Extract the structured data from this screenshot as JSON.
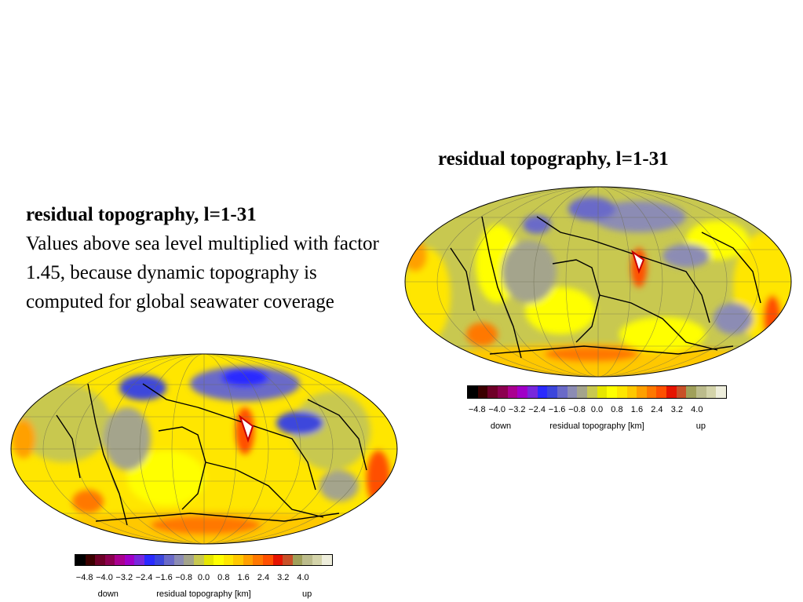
{
  "slide": {
    "right_title": "residual topography, l=1-31",
    "left_title": "residual topography, l=1-31",
    "left_body": "Values above sea level multiplied with factor 1.45, because dynamic topography is computed for global seawater coverage"
  },
  "colorbar": {
    "colors": [
      "#000000",
      "#3b0000",
      "#6e0028",
      "#8c0050",
      "#aa0090",
      "#a000c8",
      "#7828dc",
      "#2a2aff",
      "#3c46dc",
      "#6a6ac8",
      "#8c8cb4",
      "#a4a48c",
      "#c8c850",
      "#e6e600",
      "#ffff00",
      "#ffe600",
      "#ffc800",
      "#ffa000",
      "#ff7800",
      "#ff5000",
      "#e61400",
      "#c85028",
      "#a0a05a",
      "#bcbc8c",
      "#d4d4aa",
      "#eeeedc"
    ],
    "ticks": [
      "−4.8",
      "−4.0",
      "−3.2",
      "−2.4",
      "−1.6",
      "−0.8",
      "0.0",
      "0.8",
      "1.6",
      "2.4",
      "3.2",
      "4.0"
    ],
    "down_label": "down",
    "title": "residual topography [km]",
    "up_label": "up"
  }
}
